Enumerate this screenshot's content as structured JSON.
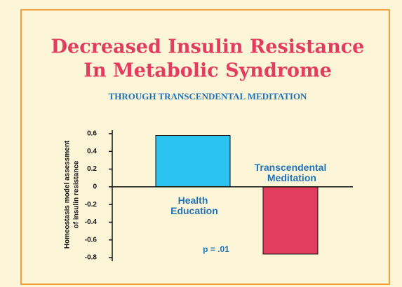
{
  "chart_data": {
    "type": "bar",
    "title": [
      "Decreased Insulin Resistance",
      "In Metabolic Syndrome"
    ],
    "subtitle": "THROUGH TRANSCENDENTAL MEDITATION",
    "y_label": [
      "Homeostasis model assessment",
      "of insulin resistance"
    ],
    "categories": [
      "Health Education",
      "Transcendental Meditation"
    ],
    "values": [
      0.58,
      -0.76
    ],
    "colors": [
      "#2cc3f0",
      "#e23c5e"
    ],
    "ylim": [
      -0.8,
      0.6
    ],
    "yticks": [
      -0.8,
      -0.6,
      -0.4,
      -0.2,
      0,
      0.2,
      0.4,
      0.6
    ],
    "annotation": "p = .01"
  }
}
